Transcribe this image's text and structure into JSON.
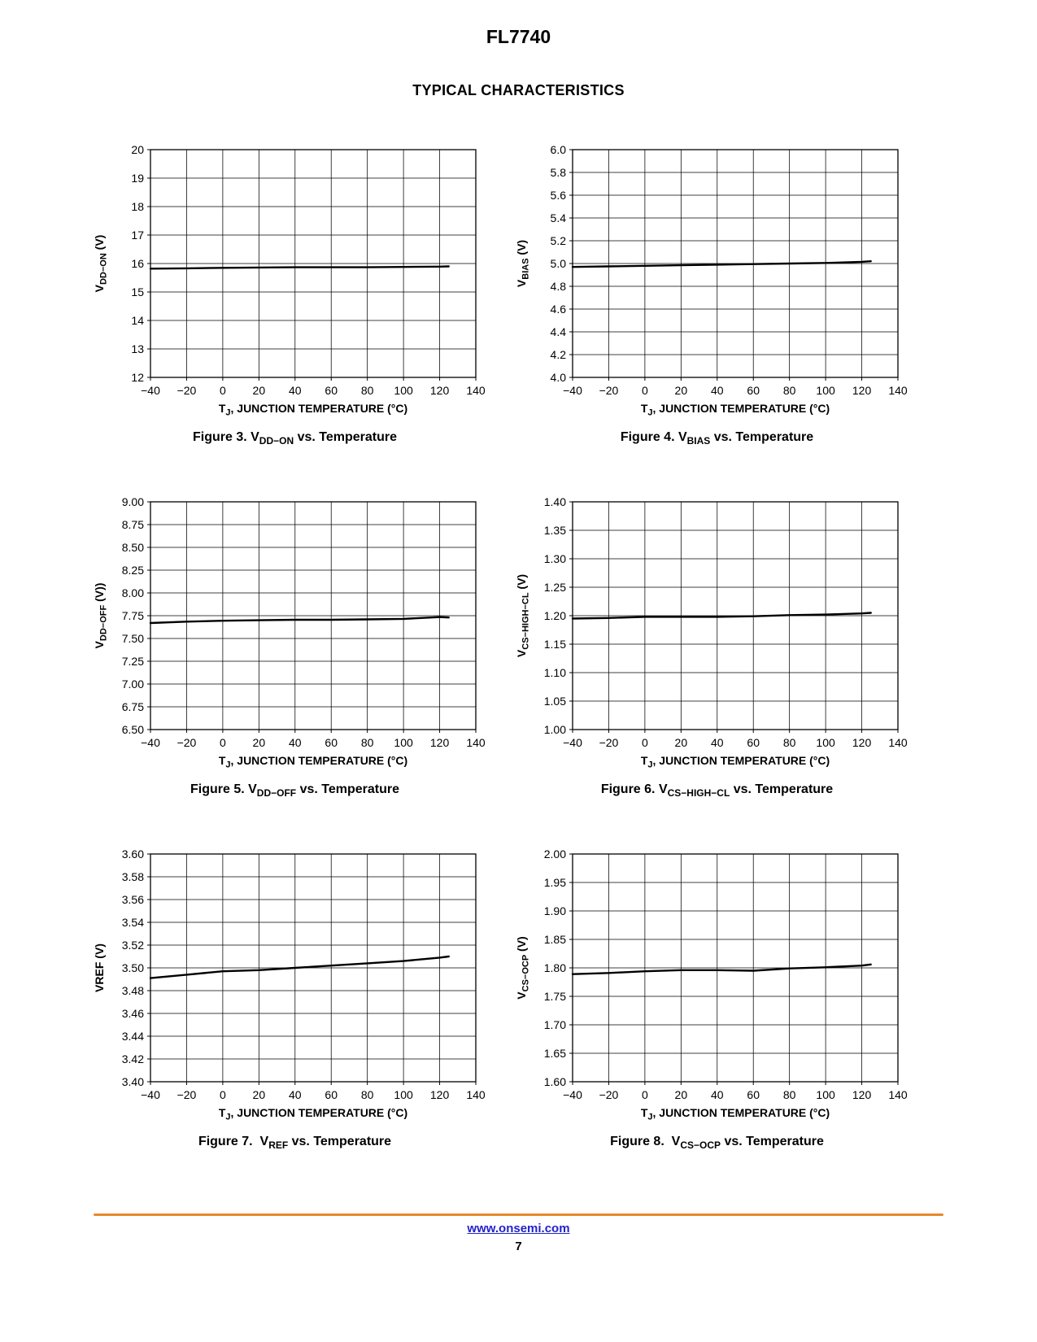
{
  "page": {
    "title": "FL7740",
    "section_heading": "TYPICAL CHARACTERISTICS",
    "colors": {
      "accent": "#e8882a",
      "link": "#2222cc"
    },
    "footer": {
      "link": "www.onsemi.com",
      "page_number": "7"
    }
  },
  "chart_data": [
    {
      "type": "line",
      "caption_rich": [
        {
          "t": "Figure 3. V"
        },
        {
          "s": "DD−ON"
        },
        {
          "t": " vs. Temperature"
        }
      ],
      "ylabel_rich": [
        {
          "t": "V"
        },
        {
          "s": "DD−ON"
        },
        {
          "t": " (V)"
        }
      ],
      "xlabel_rich": [
        {
          "t": "T"
        },
        {
          "s": "J"
        },
        {
          "t": ", JUNCTION TEMPERATURE (°C)"
        }
      ],
      "xlim": [
        -40,
        140
      ],
      "xticks": [
        -40,
        -20,
        0,
        20,
        40,
        60,
        80,
        100,
        120,
        140
      ],
      "ylim": [
        12,
        20
      ],
      "ytick_labels": [
        "12",
        "13",
        "14",
        "15",
        "16",
        "17",
        "18",
        "19",
        "20"
      ],
      "grid": true,
      "legend": "none",
      "series": [
        {
          "name": "VDD-ON",
          "x": [
            -40,
            -20,
            0,
            20,
            40,
            60,
            80,
            100,
            120,
            125
          ],
          "y": [
            15.82,
            15.83,
            15.85,
            15.86,
            15.87,
            15.87,
            15.87,
            15.88,
            15.89,
            15.9
          ]
        }
      ]
    },
    {
      "type": "line",
      "caption_rich": [
        {
          "t": "Figure 4. V"
        },
        {
          "s": "BIAS"
        },
        {
          "t": " vs. Temperature"
        }
      ],
      "ylabel_rich": [
        {
          "t": "V"
        },
        {
          "s": "BIAS"
        },
        {
          "t": " (V)"
        }
      ],
      "xlabel_rich": [
        {
          "t": "T"
        },
        {
          "s": "J"
        },
        {
          "t": ", JUNCTION TEMPERATURE (°C)"
        }
      ],
      "xlim": [
        -40,
        140
      ],
      "xticks": [
        -40,
        -20,
        0,
        20,
        40,
        60,
        80,
        100,
        120,
        140
      ],
      "ylim": [
        4.0,
        6.0
      ],
      "ytick_labels": [
        "4.0",
        "4.2",
        "4.4",
        "4.6",
        "4.8",
        "5.0",
        "5.2",
        "5.4",
        "5.6",
        "5.8",
        "6.0"
      ],
      "grid": true,
      "legend": "none",
      "series": [
        {
          "name": "VBIAS",
          "x": [
            -40,
            -20,
            0,
            20,
            40,
            60,
            80,
            100,
            120,
            125
          ],
          "y": [
            4.97,
            4.975,
            4.98,
            4.985,
            4.99,
            4.995,
            5.0,
            5.005,
            5.015,
            5.02
          ]
        }
      ]
    },
    {
      "type": "line",
      "caption_rich": [
        {
          "t": "Figure 5. V"
        },
        {
          "s": "DD−OFF"
        },
        {
          "t": " vs. Temperature"
        }
      ],
      "ylabel_rich": [
        {
          "t": "V"
        },
        {
          "s": "DD−OFF"
        },
        {
          "t": " (V))"
        }
      ],
      "xlabel_rich": [
        {
          "t": "T"
        },
        {
          "s": "J"
        },
        {
          "t": ", JUNCTION TEMPERATURE (°C)"
        }
      ],
      "xlim": [
        -40,
        140
      ],
      "xticks": [
        -40,
        -20,
        0,
        20,
        40,
        60,
        80,
        100,
        120,
        140
      ],
      "ylim": [
        6.5,
        9.0
      ],
      "ytick_labels": [
        "6.50",
        "6.75",
        "7.00",
        "7.25",
        "7.50",
        "7.75",
        "8.00",
        "8.25",
        "8.50",
        "8.75",
        "9.00"
      ],
      "grid": true,
      "legend": "none",
      "series": [
        {
          "name": "VDD-OFF",
          "x": [
            -40,
            -20,
            0,
            20,
            40,
            60,
            80,
            100,
            120,
            125
          ],
          "y": [
            7.67,
            7.685,
            7.695,
            7.7,
            7.705,
            7.705,
            7.71,
            7.715,
            7.735,
            7.73
          ]
        }
      ]
    },
    {
      "type": "line",
      "caption_rich": [
        {
          "t": "Figure 6. V"
        },
        {
          "s": "CS−HIGH−CL"
        },
        {
          "t": " vs. Temperature"
        }
      ],
      "ylabel_rich": [
        {
          "t": "V"
        },
        {
          "s": "CS−HIGH−CL"
        },
        {
          "t": " (V)"
        }
      ],
      "xlabel_rich": [
        {
          "t": "T"
        },
        {
          "s": "J"
        },
        {
          "t": ", JUNCTION TEMPERATURE (°C)"
        }
      ],
      "xlim": [
        -40,
        140
      ],
      "xticks": [
        -40,
        -20,
        0,
        20,
        40,
        60,
        80,
        100,
        120,
        140
      ],
      "ylim": [
        1.0,
        1.4
      ],
      "ytick_labels": [
        "1.00",
        "1.05",
        "1.10",
        "1.15",
        "1.20",
        "1.25",
        "1.30",
        "1.35",
        "1.40"
      ],
      "grid": true,
      "legend": "none",
      "series": [
        {
          "name": "VCS-HIGH-CL",
          "x": [
            -40,
            -20,
            0,
            20,
            40,
            60,
            80,
            100,
            120,
            125
          ],
          "y": [
            1.195,
            1.196,
            1.198,
            1.198,
            1.198,
            1.199,
            1.201,
            1.202,
            1.204,
            1.205
          ]
        }
      ]
    },
    {
      "type": "line",
      "caption_rich": [
        {
          "t": "Figure 7.  V"
        },
        {
          "s": "REF"
        },
        {
          "t": " vs. Temperature"
        }
      ],
      "ylabel_rich": [
        {
          "t": "VREF (V)"
        }
      ],
      "xlabel_rich": [
        {
          "t": "T"
        },
        {
          "s": "J"
        },
        {
          "t": ", JUNCTION TEMPERATURE (°C)"
        }
      ],
      "xlim": [
        -40,
        140
      ],
      "xticks": [
        -40,
        -20,
        0,
        20,
        40,
        60,
        80,
        100,
        120,
        140
      ],
      "ylim": [
        3.4,
        3.6
      ],
      "ytick_labels": [
        "3.40",
        "3.42",
        "3.44",
        "3.46",
        "3.48",
        "3.50",
        "3.52",
        "3.54",
        "3.56",
        "3.58",
        "3.60"
      ],
      "grid": true,
      "legend": "none",
      "series": [
        {
          "name": "VREF",
          "x": [
            -40,
            -20,
            0,
            20,
            40,
            60,
            80,
            100,
            120,
            125
          ],
          "y": [
            3.491,
            3.494,
            3.497,
            3.498,
            3.5,
            3.502,
            3.504,
            3.506,
            3.509,
            3.51
          ]
        }
      ]
    },
    {
      "type": "line",
      "caption_rich": [
        {
          "t": "Figure 8.  V"
        },
        {
          "s": "CS−OCP"
        },
        {
          "t": " vs. Temperature"
        }
      ],
      "ylabel_rich": [
        {
          "t": "V"
        },
        {
          "s": "CS−OCP"
        },
        {
          "t": " (V)"
        }
      ],
      "xlabel_rich": [
        {
          "t": "T"
        },
        {
          "s": "J"
        },
        {
          "t": ", JUNCTION TEMPERATURE (°C)"
        }
      ],
      "xlim": [
        -40,
        140
      ],
      "xticks": [
        -40,
        -20,
        0,
        20,
        40,
        60,
        80,
        100,
        120,
        140
      ],
      "ylim": [
        1.6,
        2.0
      ],
      "ytick_labels": [
        "1.60",
        "1.65",
        "1.70",
        "1.75",
        "1.80",
        "1.85",
        "1.90",
        "1.95",
        "2.00"
      ],
      "grid": true,
      "legend": "none",
      "series": [
        {
          "name": "VCS-OCP",
          "x": [
            -40,
            -20,
            0,
            20,
            40,
            60,
            80,
            100,
            120,
            125
          ],
          "y": [
            1.789,
            1.791,
            1.794,
            1.796,
            1.796,
            1.795,
            1.799,
            1.801,
            1.804,
            1.806
          ]
        }
      ]
    }
  ]
}
